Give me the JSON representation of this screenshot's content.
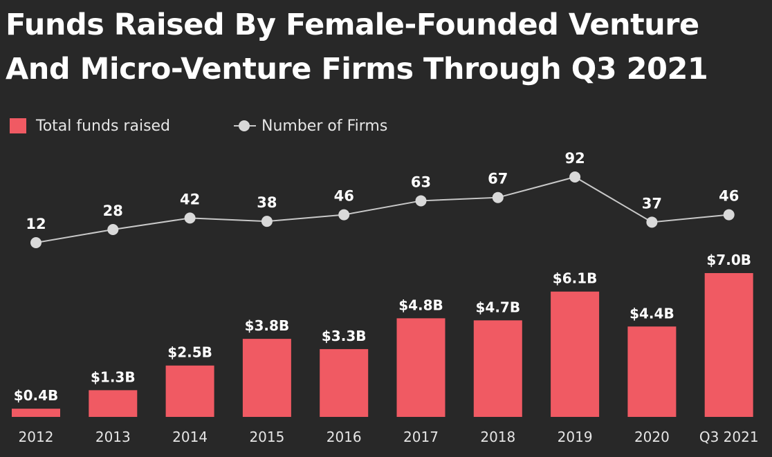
{
  "colors": {
    "background": "#282828",
    "bar": "#f05a63",
    "line": "#c9c9c9",
    "dot": "#d9d9d9",
    "text": "#ffffff"
  },
  "chart_data": {
    "type": "bar",
    "title_line1": "Funds Raised By Female-Founded Venture",
    "title_line2": "And Micro-Venture Firms Through Q3 2021",
    "legend": {
      "bars_label": "Total funds raised",
      "line_label": "Number of Firms",
      "placement": "top-left"
    },
    "categories": [
      "2012",
      "2013",
      "2014",
      "2015",
      "2016",
      "2017",
      "2018",
      "2019",
      "2020",
      "Q3 2021"
    ],
    "series": [
      {
        "name": "Total funds raised",
        "type": "bar",
        "unit": "$B",
        "values": [
          0.4,
          1.3,
          2.5,
          3.8,
          3.3,
          4.8,
          4.7,
          6.1,
          4.4,
          7.0
        ],
        "labels": [
          "$0.4B",
          "$1.3B",
          "$2.5B",
          "$3.8B",
          "$3.3B",
          "$4.8B",
          "$4.7B",
          "$6.1B",
          "$4.4B",
          "$7.0B"
        ]
      },
      {
        "name": "Number of Firms",
        "type": "line",
        "values": [
          12,
          28,
          42,
          38,
          46,
          63,
          67,
          92,
          37,
          46
        ],
        "labels": [
          "12",
          "28",
          "42",
          "38",
          "46",
          "63",
          "67",
          "92",
          "37",
          "46"
        ]
      }
    ],
    "bar_ylim": [
      0,
      7.0
    ],
    "line_ylim": [
      12,
      92
    ],
    "grid": false,
    "xlabel": "",
    "ylabel": ""
  }
}
